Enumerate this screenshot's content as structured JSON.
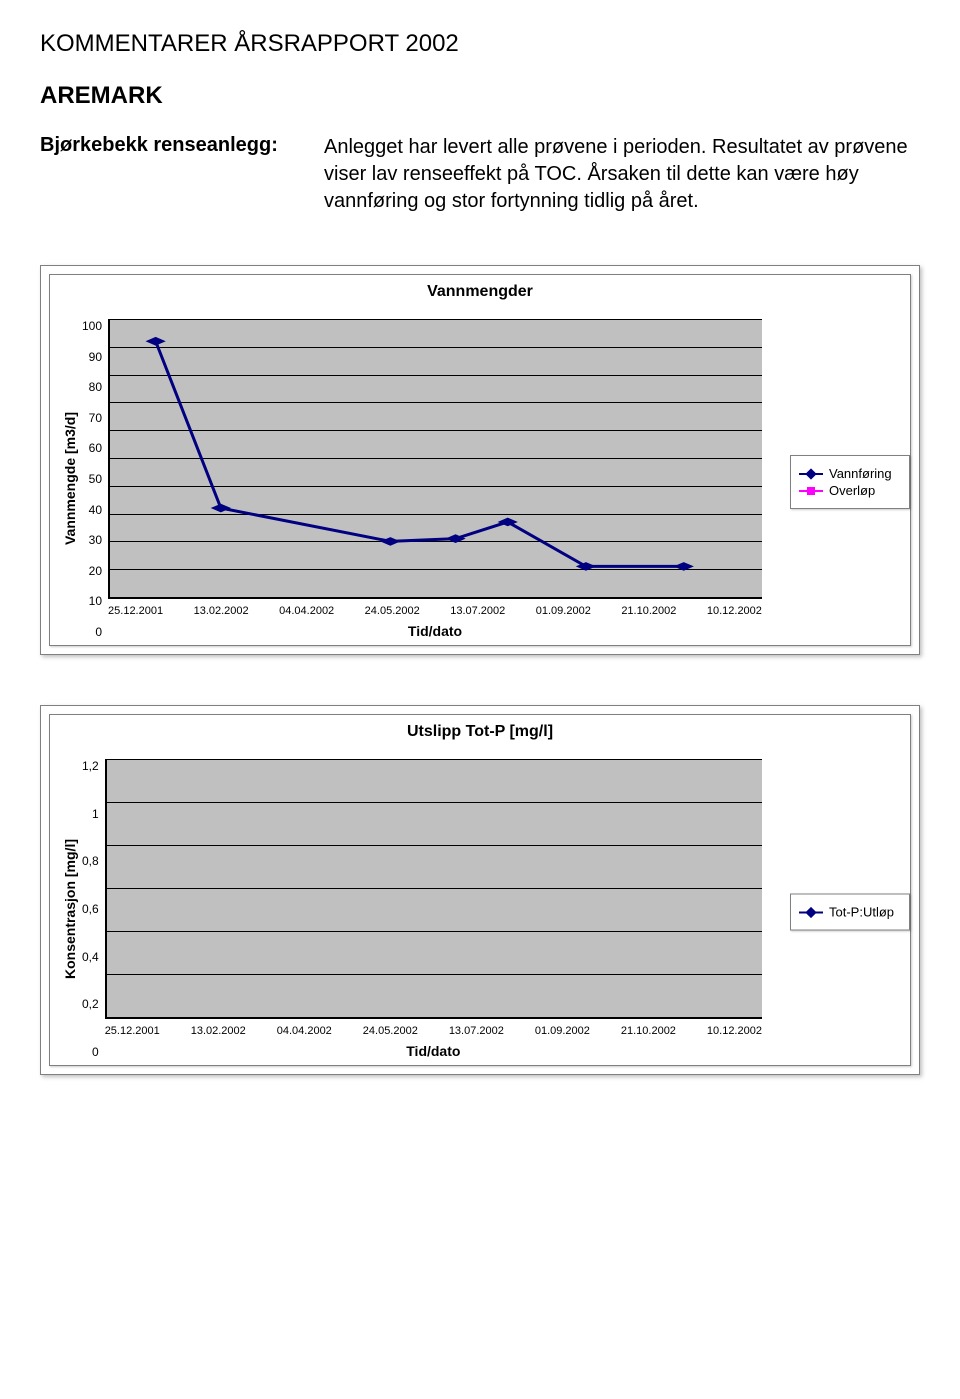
{
  "header": {
    "title": "KOMMENTARER ÅRSRAPPORT 2002",
    "subtitle": "AREMARK",
    "desc_label": "Bjørkebekk renseanlegg:",
    "desc_text": "Anlegget har levert alle prøvene i perioden. Resultatet av prøvene viser lav renseeffekt på TOC. Årsaken til dette kan være høy vannføring og stor fortynning tidlig på året."
  },
  "chart1": {
    "type": "line",
    "title": "Vannmengder",
    "ylabel": "Vannmengde [m3/d]",
    "xlabel": "Tid/dato",
    "ylim": [
      0,
      100
    ],
    "yticks": [
      "100",
      "90",
      "80",
      "70",
      "60",
      "50",
      "40",
      "30",
      "20",
      "10",
      "0"
    ],
    "ytick_step": 10,
    "xticks": [
      "25.12.2001",
      "13.02.2002",
      "04.04.2002",
      "24.05.2002",
      "13.07.2002",
      "01.09.2002",
      "21.10.2002",
      "10.12.2002"
    ],
    "background_color": "#c0c0c0",
    "grid_color": "#000000",
    "series": [
      {
        "name": "Vannføring",
        "color": "#000080",
        "marker": "diamond",
        "line_width": 3,
        "points": [
          [
            7,
            92
          ],
          [
            17,
            32
          ],
          [
            43,
            20
          ],
          [
            53,
            21
          ],
          [
            61,
            27
          ],
          [
            73,
            11
          ],
          [
            88,
            11
          ]
        ]
      },
      {
        "name": "Overløp",
        "color": "#ff00ff",
        "marker": "square",
        "line_width": 3,
        "points": []
      }
    ]
  },
  "chart2": {
    "type": "line",
    "title": "Utslipp Tot-P [mg/l]",
    "ylabel": "Konsentrasjon [mg/l]",
    "xlabel": "Tid/dato",
    "ylim": [
      0,
      1.2
    ],
    "yticks": [
      "1,2",
      "1",
      "0,8",
      "0,6",
      "0,4",
      "0,2",
      "0"
    ],
    "xticks": [
      "25.12.2001",
      "13.02.2002",
      "04.04.2002",
      "24.05.2002",
      "13.07.2002",
      "01.09.2002",
      "21.10.2002",
      "10.12.2002"
    ],
    "background_color": "#c0c0c0",
    "grid_color": "#000000",
    "series": [
      {
        "name": "Tot-P:Utløp",
        "color": "#000080",
        "marker": "diamond",
        "line_width": 3,
        "points": []
      }
    ]
  }
}
